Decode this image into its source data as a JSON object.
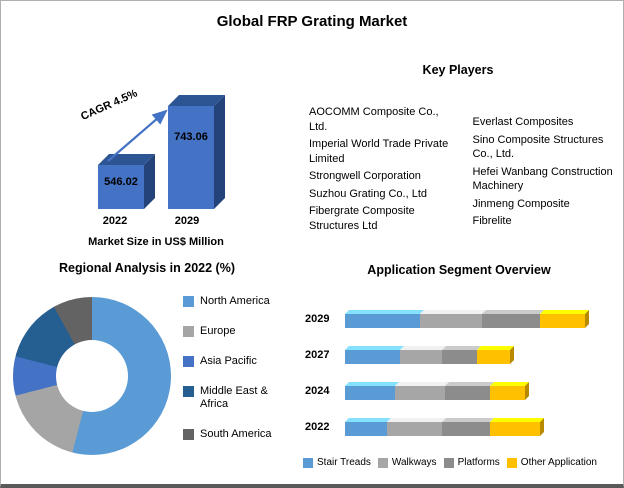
{
  "title": "Global FRP Grating Market",
  "chart_data": [
    {
      "type": "bar",
      "name": "market-size",
      "title": "Market Size in US$ Million",
      "categories": [
        "2022",
        "2029"
      ],
      "values": [
        546.02,
        743.06
      ],
      "value_labels": [
        "546.02",
        "743.06"
      ],
      "annotation": "CAGR 4.5%",
      "ylim": [
        400,
        800
      ],
      "bar_face_color": "#4472C4",
      "bar_top_color": "#2D5493",
      "bar_side_color": "#24437A"
    },
    {
      "type": "pie",
      "name": "regional-analysis",
      "style": "donut",
      "title": "Regional Analysis in 2022 (%)",
      "labels": [
        "North America",
        "Europe",
        "Asia Pacific",
        "Middle East & Africa",
        "South America"
      ],
      "values": [
        54,
        17,
        8,
        13,
        8
      ],
      "colors": [
        "#5B9BD5",
        "#A5A5A5",
        "#4472C4",
        "#255E91",
        "#636363"
      ],
      "legend_position": "right"
    },
    {
      "type": "bar",
      "subtype": "horizontal-stacked",
      "name": "application-segment",
      "title": "Application Segment Overview",
      "categories": [
        "2029",
        "2027",
        "2024",
        "2022"
      ],
      "series": [
        {
          "name": "Stair Treads",
          "color": "#5B9BD5",
          "values": [
            75,
            55,
            50,
            42
          ]
        },
        {
          "name": "Walkways",
          "color": "#A6A6A6",
          "values": [
            62,
            42,
            50,
            55
          ]
        },
        {
          "name": "Platforms",
          "color": "#8C8C8C",
          "values": [
            58,
            35,
            45,
            48
          ]
        },
        {
          "name": "Other Application",
          "color": "#FFC000",
          "values": [
            45,
            33,
            35,
            50
          ]
        }
      ],
      "axis_max": 252,
      "legend_position": "bottom"
    }
  ],
  "key_players": {
    "title": "Key Players",
    "columns": [
      [
        "AOCOMM Composite Co., Ltd.",
        "Imperial World Trade Private Limited",
        "Strongwell Corporation",
        "Suzhou Grating Co., Ltd",
        "Fibergrate Composite Structures Ltd"
      ],
      [
        "Everlast Composites",
        "Sino Composite Structures Co., Ltd.",
        "Hefei Wanbang Construction Machinery",
        "Jinmeng Composite",
        "Fibrelite"
      ]
    ]
  }
}
